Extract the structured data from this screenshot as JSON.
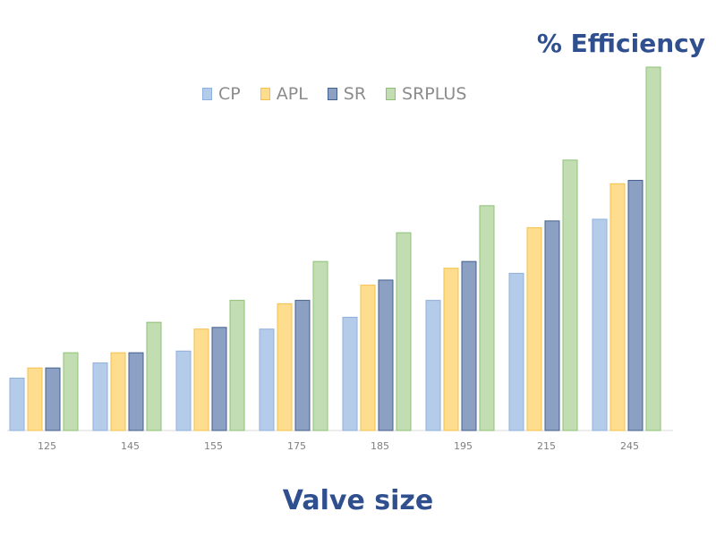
{
  "chart_data": {
    "type": "bar",
    "title": "",
    "xlabel": "Valve size",
    "ylabel": "% Efficiency",
    "categories": [
      "125",
      "145",
      "155",
      "175",
      "185",
      "195",
      "215",
      "245"
    ],
    "series": [
      {
        "name": "CP",
        "values": [
          31,
          40,
          47,
          60,
          67,
          77,
          93,
          125
        ],
        "fill": "#b4cbe9",
        "stroke": "#8fb0dc"
      },
      {
        "name": "APL",
        "values": [
          37,
          46,
          60,
          75,
          86,
          96,
          120,
          146
        ],
        "fill": "#ffdd8f",
        "stroke": "#f3c14a"
      },
      {
        "name": "SR",
        "values": [
          37,
          46,
          61,
          77,
          89,
          100,
          124,
          148
        ],
        "fill": "#8ba0c3",
        "stroke": "#44608d"
      },
      {
        "name": "SRPLUS",
        "values": [
          46,
          64,
          77,
          100,
          117,
          133,
          160,
          215
        ],
        "fill": "#c3ddb3",
        "stroke": "#8cc174"
      }
    ],
    "ylim": [
      0,
      215
    ],
    "grid": false,
    "legend_position": "top-left"
  }
}
